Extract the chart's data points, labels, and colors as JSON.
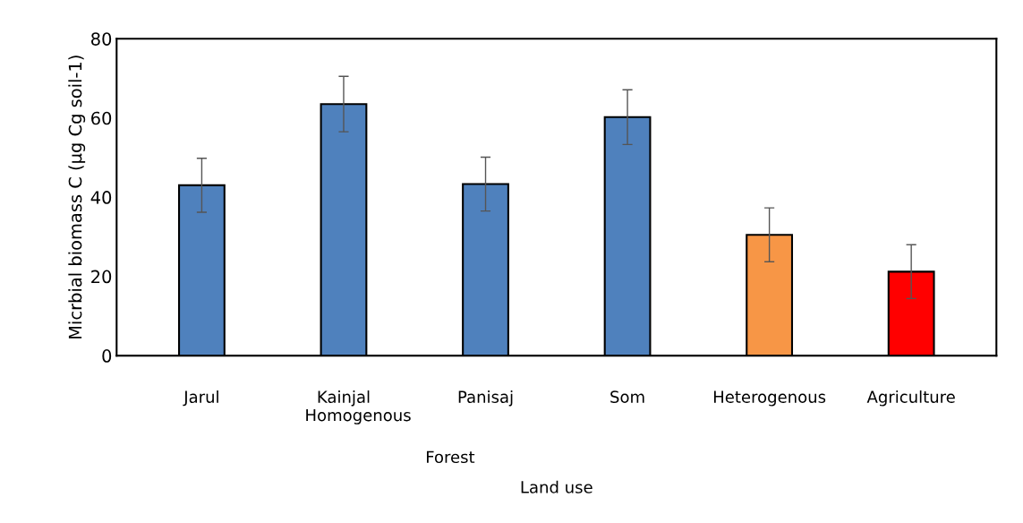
{
  "chart_data": {
    "type": "bar",
    "xlabel": "Land use",
    "ylabel": "Micrbial biomass C (µg Cg soil-1)",
    "categories": [
      "Jarul",
      "Kainjal",
      "Panisaj",
      "Som",
      "Heterogenous",
      "Agriculture"
    ],
    "values": [
      43,
      63.5,
      43.3,
      60.2,
      30.5,
      21.2
    ],
    "errors": [
      6.8,
      7,
      6.8,
      6.9,
      6.8,
      6.8
    ],
    "colors": [
      "#4f81bd",
      "#4f81bd",
      "#4f81bd",
      "#4f81bd",
      "#f79646",
      "#ff0000"
    ],
    "ylim": [
      0,
      80
    ],
    "yticks": [
      0,
      20,
      40,
      60,
      80
    ],
    "grid": false,
    "legend": false,
    "annotations": [
      "Homogenous",
      "Forest"
    ]
  }
}
